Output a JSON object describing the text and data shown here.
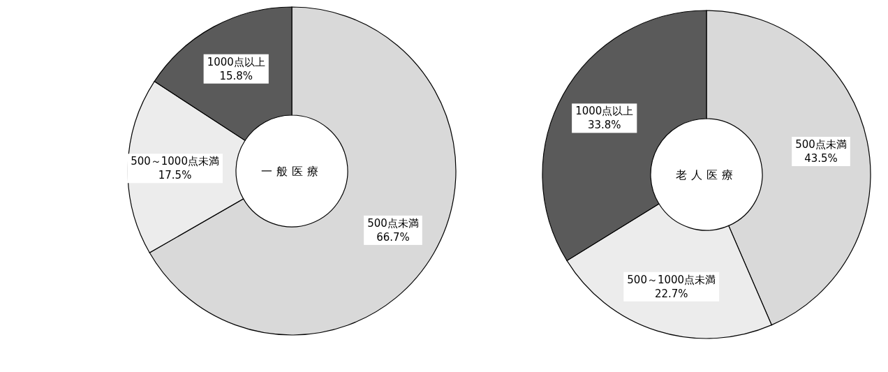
{
  "chart_data": [
    {
      "type": "donut",
      "title": "一般医療",
      "categories": [
        "500点未満",
        "500～1000点未満",
        "1000点以上"
      ],
      "values": [
        66.7,
        17.5,
        15.8
      ],
      "value_labels": [
        "66.7%",
        "17.5%",
        "15.8%"
      ],
      "colors": [
        "#d9d9d9",
        "#ececec",
        "#5a5a5a"
      ]
    },
    {
      "type": "donut",
      "title": "老人医療",
      "categories": [
        "500点未満",
        "500～1000点未満",
        "1000点以上"
      ],
      "values": [
        43.5,
        22.7,
        33.8
      ],
      "value_labels": [
        "43.5%",
        "22.7%",
        "33.8%"
      ],
      "colors": [
        "#d9d9d9",
        "#ececec",
        "#5a5a5a"
      ]
    }
  ]
}
